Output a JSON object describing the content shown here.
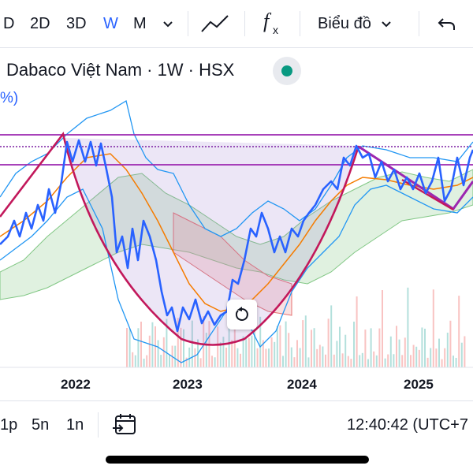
{
  "toolbar": {
    "intervals": [
      "D",
      "2D",
      "3D",
      "W",
      "M"
    ],
    "active_interval": "W",
    "interval_dropdown_icon": "chevron-down-icon",
    "chart_type_icon": "line-chart-icon",
    "indicator_icon": "fx-icon",
    "chart_menu_label": "Biểu đồ",
    "undo_icon": "undo-icon"
  },
  "legend": {
    "symbol_text": "Dabaco Việt Nam · 1W · HSX",
    "status_color": "#089981",
    "percent_fragment": "%)"
  },
  "x_axis": {
    "labels": [
      "2022",
      "2023",
      "2024",
      "2025"
    ]
  },
  "reset_icon": "reset-icon",
  "bottom_bar": {
    "ranges": [
      "1p",
      "5n",
      "1n"
    ],
    "goto_date_icon": "calendar-goto-icon",
    "clock_text": "12:40:42 (UTC+7"
  },
  "colors": {
    "price_line": "#2962ff",
    "bollinger": "#2196f3",
    "ma_orange": "#f57c00",
    "pattern_magenta": "#c2185b",
    "level_purple": "#9c27b0",
    "cloud_green": "#a5d6a7",
    "cloud_red": "#ef9a9a"
  }
}
